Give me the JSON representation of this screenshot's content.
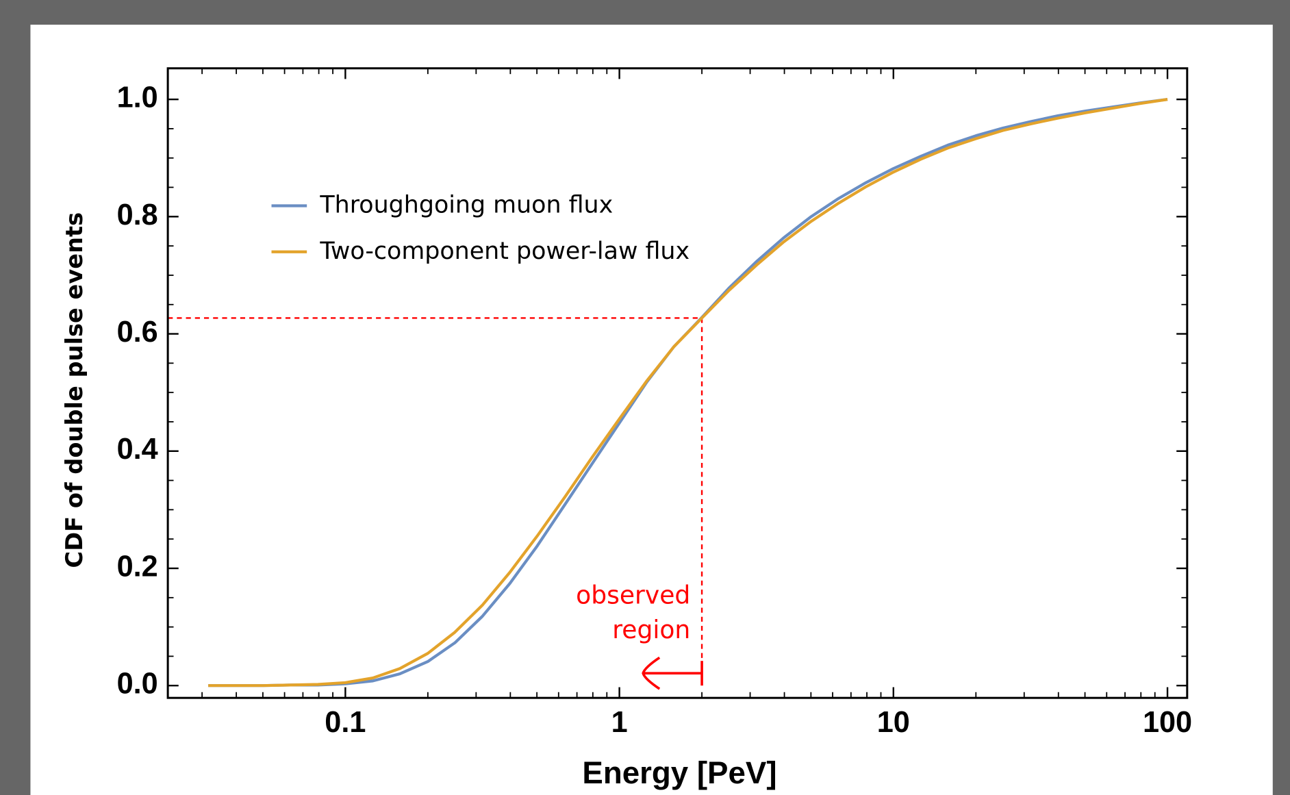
{
  "chart_data": {
    "type": "line",
    "xlabel": "Energy [PeV]",
    "ylabel": "CDF of double pulse events",
    "xscale": "log",
    "xlim": [
      0.0225,
      118
    ],
    "ylim": [
      -0.021,
      1.053
    ],
    "xticks": [
      0.1,
      1,
      10,
      100
    ],
    "yticks": [
      {
        "value": 0,
        "label": "0.0"
      },
      0.2,
      0.4,
      0.6,
      0.8,
      {
        "value": 1,
        "label": "1.0"
      }
    ],
    "grid": false,
    "legend": "upper left",
    "x": [
      0.0316,
      0.0398,
      0.0501,
      0.0631,
      0.0794,
      0.1,
      0.126,
      0.158,
      0.2,
      0.251,
      0.316,
      0.398,
      0.501,
      0.631,
      0.794,
      1,
      1.26,
      1.58,
      2,
      2.51,
      3.16,
      3.98,
      5.01,
      6.31,
      7.94,
      10,
      12.6,
      15.8,
      20,
      25.1,
      31.6,
      39.8,
      50.1,
      63.1,
      79.4,
      100
    ],
    "series": [
      {
        "name": "Throughgoing muon flux",
        "color": "#6a8ec3",
        "values": [
          0,
          0,
          0,
          0.001,
          0.001,
          0.003,
          0.008,
          0.02,
          0.041,
          0.073,
          0.118,
          0.174,
          0.238,
          0.308,
          0.378,
          0.448,
          0.518,
          0.578,
          0.628,
          0.678,
          0.723,
          0.764,
          0.8,
          0.831,
          0.858,
          0.882,
          0.903,
          0.922,
          0.938,
          0.951,
          0.962,
          0.972,
          0.98,
          0.987,
          0.994,
          1.0
        ]
      },
      {
        "name": "Two-component power-law flux",
        "color": "#e3a32b",
        "values": [
          0,
          0,
          0,
          0.001,
          0.002,
          0.005,
          0.013,
          0.029,
          0.055,
          0.091,
          0.137,
          0.193,
          0.255,
          0.321,
          0.389,
          0.455,
          0.52,
          0.578,
          0.627,
          0.674,
          0.717,
          0.757,
          0.792,
          0.823,
          0.851,
          0.876,
          0.898,
          0.917,
          0.933,
          0.947,
          0.958,
          0.968,
          0.977,
          0.985,
          0.993,
          1.0
        ]
      }
    ],
    "annotation": {
      "lines": [
        "observed",
        "region"
      ],
      "x": 2,
      "y": 0.627,
      "arrow_to": 1.22,
      "color": "#ff0000"
    }
  }
}
